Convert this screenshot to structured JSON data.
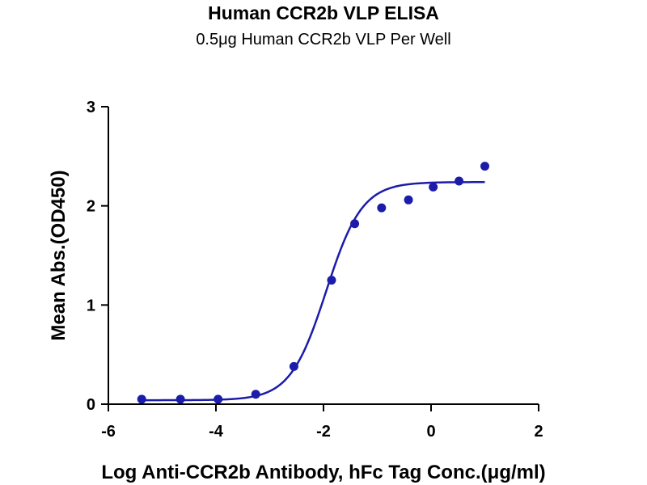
{
  "chart_data": {
    "type": "scatter",
    "title": "Human CCR2b VLP ELISA",
    "subtitle": "0.5μg Human CCR2b VLP Per Well",
    "xlabel": "Log Anti-CCR2b Antibody, hFc Tag Conc.(μg/ml)",
    "ylabel": "Mean Abs.(OD450)",
    "xlim": [
      -6,
      2
    ],
    "ylim": [
      0,
      3
    ],
    "x_ticks": [
      "-6",
      "-4",
      "-2",
      "0",
      "2"
    ],
    "y_ticks": [
      "0",
      "1",
      "2",
      "3"
    ],
    "grid": false,
    "color": "#1c1caa",
    "series": [
      {
        "x": [
          -5.38,
          -4.66,
          -3.96,
          -3.26,
          -2.55,
          -1.85,
          -1.42,
          -0.92,
          -0.42,
          0.04,
          0.52,
          1.0
        ],
        "y": [
          0.05,
          0.05,
          0.05,
          0.1,
          0.38,
          1.25,
          1.82,
          1.98,
          2.06,
          2.19,
          2.25,
          2.4
        ]
      }
    ],
    "fit_curve": {
      "model": "4PL",
      "bottom": 0.04,
      "top": 2.24,
      "log_ec50": -1.95,
      "hill_slope": 1.3,
      "x_range": [
        -5.38,
        1.0
      ]
    }
  }
}
